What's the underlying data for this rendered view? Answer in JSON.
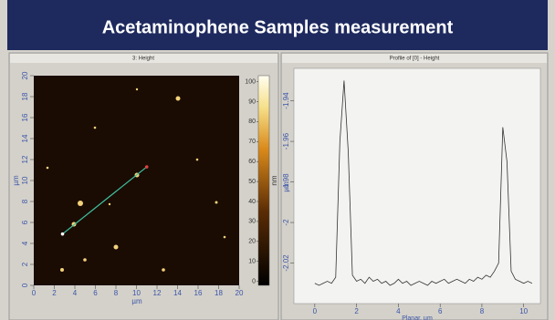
{
  "header": {
    "title": "Acetaminophene Samples measurement"
  },
  "chart_data": [
    {
      "type": "image",
      "title": "3: Height",
      "x_label": "µm",
      "y_label": "µm",
      "colorbar_label": "nm",
      "xlim": [
        0,
        20
      ],
      "xticks": [
        0,
        2,
        4,
        6,
        8,
        10,
        12,
        14,
        16,
        18,
        20
      ],
      "ylim": [
        0,
        20
      ],
      "yticks": [
        0,
        2,
        4,
        6,
        8,
        10,
        12,
        14,
        16,
        18,
        20
      ],
      "clim": [
        -2,
        103
      ],
      "cticks": [
        0,
        10,
        20,
        30,
        40,
        50,
        60,
        70,
        80,
        90,
        100
      ],
      "profile_line": {
        "x": [
          2.8,
          11
        ],
        "y": [
          4.9,
          11.3
        ],
        "color": "#3fc0a0"
      }
    },
    {
      "type": "line",
      "title": "Profile of [0] - Height",
      "x_label": "Planar, µm",
      "y_label": "µm",
      "xlim": [
        -1,
        10.8
      ],
      "xticks": [
        0,
        2,
        4,
        6,
        8,
        10
      ],
      "ylim": [
        -2.04,
        -1.924
      ],
      "yticks": [
        -2.02,
        -2,
        -1.98,
        -1.96,
        -1.94
      ],
      "x": [
        0,
        0.2,
        0.4,
        0.6,
        0.8,
        1,
        1.2,
        1.4,
        1.6,
        1.8,
        2,
        2.2,
        2.4,
        2.6,
        2.8,
        3,
        3.2,
        3.4,
        3.6,
        3.8,
        4,
        4.2,
        4.4,
        4.6,
        4.8,
        5,
        5.2,
        5.4,
        5.6,
        5.8,
        6,
        6.2,
        6.4,
        6.6,
        6.8,
        7,
        7.2,
        7.4,
        7.6,
        7.8,
        8,
        8.2,
        8.4,
        8.6,
        8.8,
        9,
        9.2,
        9.4,
        9.6,
        9.8,
        10,
        10.2,
        10.4
      ],
      "series": [
        {
          "color": "#333333",
          "values": [
            -2.03,
            -2.031,
            -2.03,
            -2.029,
            -2.03,
            -2.027,
            -1.96,
            -1.93,
            -1.965,
            -2.026,
            -2.029,
            -2.028,
            -2.03,
            -2.027,
            -2.029,
            -2.028,
            -2.03,
            -2.029,
            -2.031,
            -2.03,
            -2.028,
            -2.03,
            -2.029,
            -2.031,
            -2.03,
            -2.029,
            -2.03,
            -2.031,
            -2.029,
            -2.03,
            -2.029,
            -2.028,
            -2.03,
            -2.029,
            -2.028,
            -2.029,
            -2.03,
            -2.028,
            -2.029,
            -2.027,
            -2.028,
            -2.026,
            -2.027,
            -2.024,
            -2.02,
            -1.953,
            -1.97,
            -2.024,
            -2.028,
            -2.029,
            -2.03,
            -2.029,
            -2.03
          ]
        }
      ]
    }
  ]
}
